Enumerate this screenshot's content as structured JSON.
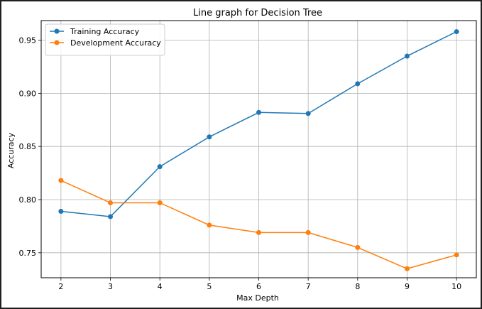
{
  "chart_data": {
    "type": "line",
    "title": "Line graph for Decision Tree",
    "xlabel": "Max Depth",
    "ylabel": "Accuracy",
    "x": [
      2,
      3,
      4,
      5,
      6,
      7,
      8,
      9,
      10
    ],
    "xticks": [
      "2",
      "3",
      "4",
      "5",
      "6",
      "7",
      "8",
      "9",
      "10"
    ],
    "yticks": [
      "0.75",
      "0.80",
      "0.85",
      "0.90",
      "0.95"
    ],
    "ytick_values": [
      0.75,
      0.8,
      0.85,
      0.9,
      0.95
    ],
    "xlim": [
      1.6,
      10.4
    ],
    "ylim": [
      0.7265,
      0.9684
    ],
    "grid": true,
    "legend_position": "top-left",
    "series": [
      {
        "name": "Training Accuracy",
        "color": "#1f77b4",
        "values": [
          0.789,
          0.784,
          0.831,
          0.859,
          0.882,
          0.881,
          0.909,
          0.935,
          0.958
        ]
      },
      {
        "name": "Development Accuracy",
        "color": "#ff7f0e",
        "values": [
          0.818,
          0.797,
          0.797,
          0.776,
          0.769,
          0.769,
          0.755,
          0.735,
          0.748
        ]
      }
    ]
  }
}
